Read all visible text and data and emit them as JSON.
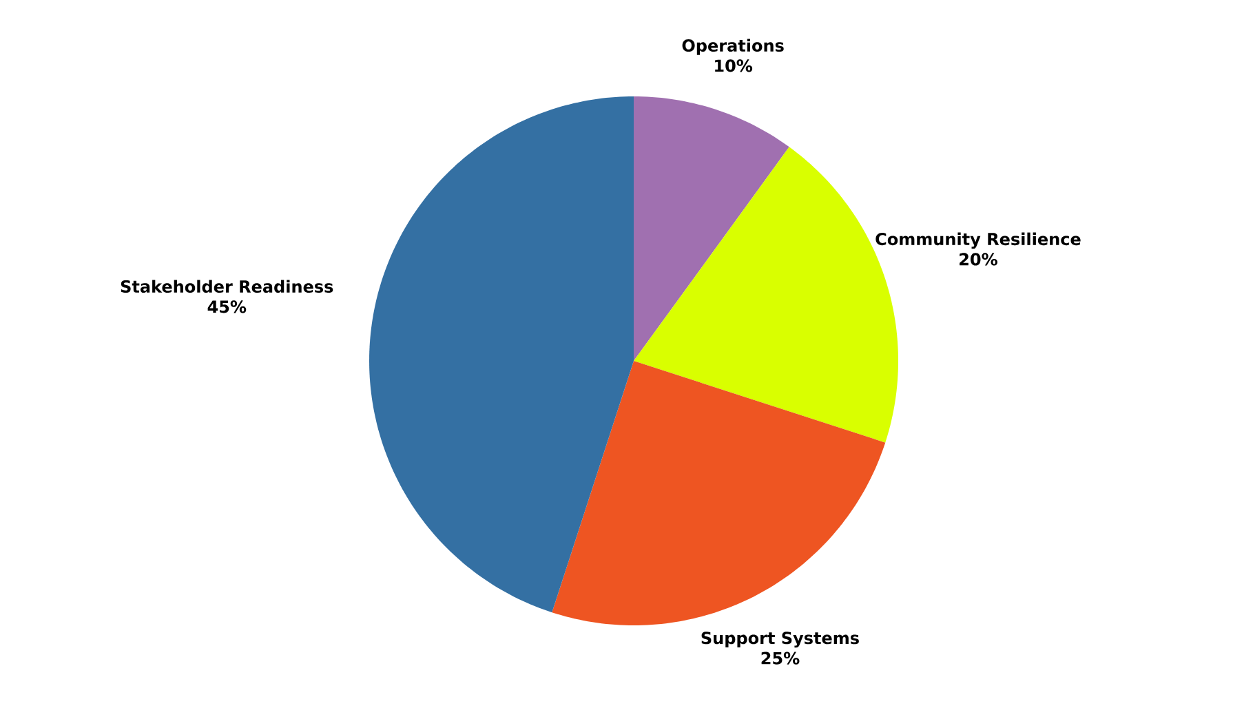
{
  "chart_data": {
    "type": "pie",
    "categories": [
      "Operations",
      "Community Resilience",
      "Support Systems",
      "Stakeholder Readiness"
    ],
    "values": [
      10,
      20,
      25,
      45
    ],
    "value_labels": [
      "10%",
      "20%",
      "25%",
      "45%"
    ],
    "colors": [
      "#a070b0",
      "#d9ff00",
      "#ee5522",
      "#3470a3"
    ]
  }
}
